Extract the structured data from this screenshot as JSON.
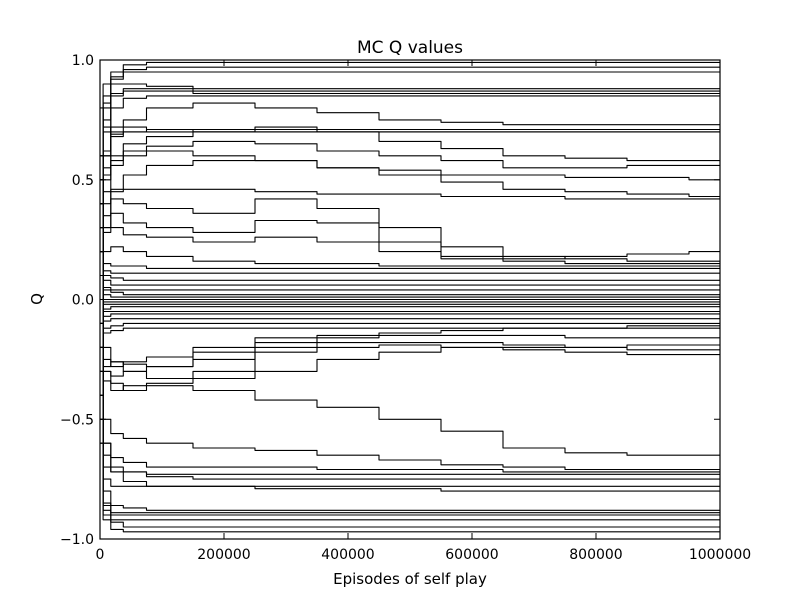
{
  "chart_data": {
    "type": "line",
    "title": "MC Q values",
    "xlabel": "Episodes of self play",
    "ylabel": "Q",
    "xlim": [
      0,
      1000000
    ],
    "ylim": [
      -1.0,
      1.0
    ],
    "xticks": [
      0,
      200000,
      400000,
      600000,
      800000,
      1000000
    ],
    "xtick_labels": [
      "0",
      "200000",
      "400000",
      "600000",
      "800000",
      "1000000"
    ],
    "yticks": [
      -1.0,
      -0.5,
      0.0,
      0.5,
      1.0
    ],
    "ytick_labels": [
      "−1.0",
      "−0.5",
      "0.0",
      "0.5",
      "1.0"
    ],
    "grid": false,
    "line_color": "#000000",
    "x": [
      0,
      10000,
      25000,
      50000,
      100000,
      200000,
      300000,
      400000,
      500000,
      600000,
      700000,
      800000,
      900000,
      1000000
    ],
    "series": [
      {
        "values": [
          0.3,
          0.8,
          0.95,
          0.98,
          0.99,
          0.99,
          0.99,
          0.99,
          0.99,
          0.99,
          0.99,
          0.99,
          0.99,
          0.99
        ]
      },
      {
        "values": [
          -0.2,
          0.7,
          0.92,
          0.96,
          0.97,
          0.97,
          0.97,
          0.97,
          0.97,
          0.97,
          0.97,
          0.97,
          0.97,
          0.97
        ]
      },
      {
        "values": [
          0.5,
          0.9,
          0.93,
          0.95,
          0.95,
          0.95,
          0.95,
          0.95,
          0.95,
          0.95,
          0.95,
          0.95,
          0.95,
          0.95
        ]
      },
      {
        "values": [
          0.1,
          0.75,
          0.85,
          0.88,
          0.88,
          0.87,
          0.87,
          0.87,
          0.87,
          0.87,
          0.87,
          0.87,
          0.87,
          0.87
        ]
      },
      {
        "values": [
          0.6,
          0.82,
          0.86,
          0.87,
          0.87,
          0.86,
          0.86,
          0.86,
          0.86,
          0.86,
          0.86,
          0.86,
          0.86,
          0.86
        ]
      },
      {
        "values": [
          0.0,
          0.6,
          0.8,
          0.84,
          0.85,
          0.85,
          0.85,
          0.85,
          0.85,
          0.85,
          0.85,
          0.85,
          0.85,
          0.85
        ]
      },
      {
        "values": [
          0.2,
          0.85,
          0.9,
          0.9,
          0.89,
          0.88,
          0.88,
          0.88,
          0.88,
          0.88,
          0.88,
          0.88,
          0.88,
          0.88
        ]
      },
      {
        "values": [
          0.4,
          0.62,
          0.68,
          0.7,
          0.71,
          0.71,
          0.71,
          0.71,
          0.71,
          0.71,
          0.71,
          0.71,
          0.71,
          0.71
        ]
      },
      {
        "values": [
          -0.1,
          0.55,
          0.7,
          0.72,
          0.71,
          0.7,
          0.7,
          0.7,
          0.7,
          0.7,
          0.7,
          0.7,
          0.7,
          0.7
        ]
      },
      {
        "values": [
          0.8,
          0.72,
          0.69,
          0.7,
          0.7,
          0.7,
          0.7,
          0.7,
          0.7,
          0.7,
          0.7,
          0.7,
          0.7,
          0.7
        ]
      },
      {
        "values": [
          0.2,
          0.6,
          0.72,
          0.75,
          0.8,
          0.82,
          0.8,
          0.78,
          0.75,
          0.74,
          0.73,
          0.73,
          0.73,
          0.73
        ]
      },
      {
        "values": [
          0.3,
          0.5,
          0.58,
          0.65,
          0.68,
          0.7,
          0.72,
          0.7,
          0.66,
          0.63,
          0.6,
          0.59,
          0.58,
          0.58
        ]
      },
      {
        "values": [
          0.1,
          0.4,
          0.6,
          0.62,
          0.64,
          0.66,
          0.65,
          0.62,
          0.6,
          0.58,
          0.55,
          0.55,
          0.56,
          0.56
        ]
      },
      {
        "values": [
          0.6,
          0.52,
          0.56,
          0.6,
          0.62,
          0.6,
          0.58,
          0.55,
          0.54,
          0.52,
          0.52,
          0.51,
          0.51,
          0.5
        ]
      },
      {
        "values": [
          -0.3,
          0.3,
          0.45,
          0.52,
          0.56,
          0.58,
          0.58,
          0.55,
          0.52,
          0.49,
          0.46,
          0.45,
          0.44,
          0.43
        ]
      },
      {
        "values": [
          0.5,
          0.45,
          0.46,
          0.46,
          0.46,
          0.46,
          0.45,
          0.44,
          0.44,
          0.43,
          0.43,
          0.42,
          0.42,
          0.42
        ]
      },
      {
        "values": [
          0.2,
          0.35,
          0.42,
          0.4,
          0.38,
          0.36,
          0.42,
          0.38,
          0.3,
          0.22,
          0.18,
          0.17,
          0.16,
          0.16
        ]
      },
      {
        "values": [
          0.0,
          0.3,
          0.36,
          0.32,
          0.3,
          0.28,
          0.33,
          0.32,
          0.24,
          0.18,
          0.17,
          0.18,
          0.19,
          0.2
        ]
      },
      {
        "values": [
          0.1,
          0.28,
          0.3,
          0.27,
          0.26,
          0.24,
          0.26,
          0.24,
          0.2,
          0.17,
          0.16,
          0.15,
          0.15,
          0.15
        ]
      },
      {
        "values": [
          0.4,
          0.2,
          0.22,
          0.2,
          0.18,
          0.16,
          0.15,
          0.15,
          0.14,
          0.14,
          0.14,
          0.14,
          0.14,
          0.14
        ]
      },
      {
        "values": [
          -0.1,
          0.15,
          0.14,
          0.14,
          0.13,
          0.13,
          0.13,
          0.13,
          0.13,
          0.13,
          0.13,
          0.13,
          0.13,
          0.13
        ]
      },
      {
        "values": [
          0.2,
          0.12,
          0.11,
          0.11,
          0.11,
          0.11,
          0.11,
          0.11,
          0.11,
          0.11,
          0.11,
          0.11,
          0.11,
          0.11
        ]
      },
      {
        "values": [
          0.5,
          0.1,
          0.09,
          0.08,
          0.08,
          0.08,
          0.08,
          0.08,
          0.08,
          0.08,
          0.08,
          0.08,
          0.08,
          0.08
        ]
      },
      {
        "values": [
          -0.4,
          0.08,
          0.06,
          0.06,
          0.06,
          0.06,
          0.06,
          0.06,
          0.06,
          0.06,
          0.06,
          0.06,
          0.06,
          0.06
        ]
      },
      {
        "values": [
          0.3,
          0.05,
          0.04,
          0.04,
          0.04,
          0.04,
          0.04,
          0.04,
          0.04,
          0.04,
          0.04,
          0.04,
          0.04,
          0.04
        ]
      },
      {
        "values": [
          -0.2,
          0.04,
          0.03,
          0.02,
          0.02,
          0.02,
          0.02,
          0.02,
          0.02,
          0.02,
          0.02,
          0.02,
          0.02,
          0.02
        ]
      },
      {
        "values": [
          0.1,
          0.02,
          0.01,
          0.01,
          0.01,
          0.01,
          0.01,
          0.01,
          0.01,
          0.01,
          0.01,
          0.01,
          0.01,
          0.01
        ]
      },
      {
        "values": [
          0.6,
          0.0,
          0.0,
          0.0,
          0.0,
          0.0,
          0.0,
          0.0,
          0.0,
          0.0,
          0.0,
          0.0,
          0.0,
          0.0
        ]
      },
      {
        "values": [
          -0.5,
          -0.01,
          -0.01,
          -0.01,
          -0.01,
          -0.01,
          -0.01,
          -0.01,
          -0.01,
          -0.01,
          -0.01,
          -0.01,
          -0.01,
          -0.01
        ]
      },
      {
        "values": [
          0.2,
          -0.02,
          -0.02,
          -0.02,
          -0.02,
          -0.02,
          -0.02,
          -0.02,
          -0.02,
          -0.02,
          -0.02,
          -0.02,
          -0.02,
          -0.02
        ]
      },
      {
        "values": [
          -0.3,
          -0.04,
          -0.03,
          -0.03,
          -0.03,
          -0.03,
          -0.03,
          -0.03,
          -0.03,
          -0.03,
          -0.03,
          -0.03,
          -0.03,
          -0.03
        ]
      },
      {
        "values": [
          0.4,
          -0.05,
          -0.05,
          -0.05,
          -0.05,
          -0.05,
          -0.05,
          -0.05,
          -0.05,
          -0.05,
          -0.05,
          -0.05,
          -0.05,
          -0.05
        ]
      },
      {
        "values": [
          -0.1,
          -0.07,
          -0.06,
          -0.06,
          -0.06,
          -0.06,
          -0.06,
          -0.06,
          -0.06,
          -0.06,
          -0.06,
          -0.06,
          -0.06,
          -0.06
        ]
      },
      {
        "values": [
          0.0,
          -0.09,
          -0.08,
          -0.08,
          -0.08,
          -0.08,
          -0.08,
          -0.08,
          -0.08,
          -0.08,
          -0.08,
          -0.08,
          -0.08,
          -0.08
        ]
      },
      {
        "values": [
          -0.6,
          -0.12,
          -0.11,
          -0.1,
          -0.1,
          -0.1,
          -0.1,
          -0.1,
          -0.1,
          -0.1,
          -0.1,
          -0.1,
          -0.1,
          -0.1
        ]
      },
      {
        "values": [
          0.3,
          -0.14,
          -0.13,
          -0.12,
          -0.12,
          -0.12,
          -0.12,
          -0.12,
          -0.12,
          -0.12,
          -0.12,
          -0.12,
          -0.12,
          -0.12
        ]
      },
      {
        "values": [
          -0.2,
          -0.25,
          -0.28,
          -0.26,
          -0.24,
          -0.2,
          -0.16,
          -0.15,
          -0.14,
          -0.13,
          -0.12,
          -0.12,
          -0.11,
          -0.11
        ]
      },
      {
        "values": [
          0.1,
          -0.3,
          -0.32,
          -0.3,
          -0.28,
          -0.22,
          -0.18,
          -0.16,
          -0.15,
          -0.15,
          -0.15,
          -0.16,
          -0.16,
          -0.16
        ]
      },
      {
        "values": [
          -0.4,
          -0.28,
          -0.26,
          -0.27,
          -0.28,
          -0.25,
          -0.2,
          -0.18,
          -0.18,
          -0.18,
          -0.19,
          -0.2,
          -0.21,
          -0.21
        ]
      },
      {
        "values": [
          0.2,
          -0.2,
          -0.26,
          -0.3,
          -0.33,
          -0.3,
          -0.22,
          -0.2,
          -0.19,
          -0.2,
          -0.21,
          -0.22,
          -0.23,
          -0.23
        ]
      },
      {
        "values": [
          -0.3,
          -0.34,
          -0.38,
          -0.36,
          -0.35,
          -0.33,
          -0.3,
          -0.25,
          -0.22,
          -0.2,
          -0.2,
          -0.2,
          -0.19,
          -0.19
        ]
      },
      {
        "values": [
          0.0,
          -0.3,
          -0.35,
          -0.38,
          -0.36,
          -0.38,
          -0.42,
          -0.45,
          -0.5,
          -0.55,
          -0.62,
          -0.64,
          -0.65,
          -0.65
        ]
      },
      {
        "values": [
          -0.6,
          -0.5,
          -0.56,
          -0.58,
          -0.6,
          -0.62,
          -0.63,
          -0.65,
          -0.67,
          -0.69,
          -0.7,
          -0.71,
          -0.71,
          -0.71
        ]
      },
      {
        "values": [
          -0.2,
          -0.6,
          -0.66,
          -0.68,
          -0.7,
          -0.7,
          -0.7,
          -0.71,
          -0.71,
          -0.71,
          -0.72,
          -0.72,
          -0.72,
          -0.72
        ]
      },
      {
        "values": [
          0.3,
          -0.7,
          -0.72,
          -0.72,
          -0.73,
          -0.73,
          -0.73,
          -0.73,
          -0.73,
          -0.73,
          -0.73,
          -0.73,
          -0.73,
          -0.73
        ]
      },
      {
        "values": [
          -0.5,
          -0.65,
          -0.7,
          -0.72,
          -0.74,
          -0.75,
          -0.75,
          -0.75,
          -0.75,
          -0.75,
          -0.75,
          -0.75,
          -0.75,
          -0.75
        ]
      },
      {
        "values": [
          0.1,
          -0.75,
          -0.78,
          -0.78,
          -0.78,
          -0.78,
          -0.78,
          -0.78,
          -0.78,
          -0.78,
          -0.78,
          -0.78,
          -0.78,
          -0.78
        ]
      },
      {
        "values": [
          -0.3,
          -0.6,
          -0.72,
          -0.76,
          -0.78,
          -0.78,
          -0.79,
          -0.79,
          -0.79,
          -0.8,
          -0.8,
          -0.8,
          -0.8,
          -0.8
        ]
      },
      {
        "values": [
          0.4,
          -0.8,
          -0.86,
          -0.87,
          -0.88,
          -0.88,
          -0.88,
          -0.88,
          -0.88,
          -0.88,
          -0.88,
          -0.88,
          -0.88,
          -0.88
        ]
      },
      {
        "values": [
          -0.1,
          -0.88,
          -0.89,
          -0.89,
          -0.89,
          -0.89,
          -0.89,
          -0.89,
          -0.89,
          -0.89,
          -0.89,
          -0.89,
          -0.89,
          -0.89
        ]
      },
      {
        "values": [
          0.2,
          -0.86,
          -0.9,
          -0.9,
          -0.9,
          -0.9,
          -0.9,
          -0.9,
          -0.9,
          -0.9,
          -0.9,
          -0.9,
          -0.9,
          -0.9
        ]
      },
      {
        "values": [
          -0.4,
          -0.9,
          -0.92,
          -0.92,
          -0.92,
          -0.92,
          -0.92,
          -0.92,
          -0.92,
          -0.92,
          -0.92,
          -0.92,
          -0.92,
          -0.92
        ]
      },
      {
        "values": [
          0.5,
          -0.85,
          -0.93,
          -0.95,
          -0.95,
          -0.95,
          -0.95,
          -0.95,
          -0.95,
          -0.95,
          -0.95,
          -0.95,
          -0.95,
          -0.95
        ]
      },
      {
        "values": [
          -0.2,
          -0.92,
          -0.96,
          -0.97,
          -0.97,
          -0.97,
          -0.97,
          -0.97,
          -0.97,
          -0.97,
          -0.97,
          -0.97,
          -0.97,
          -0.97
        ]
      }
    ]
  }
}
